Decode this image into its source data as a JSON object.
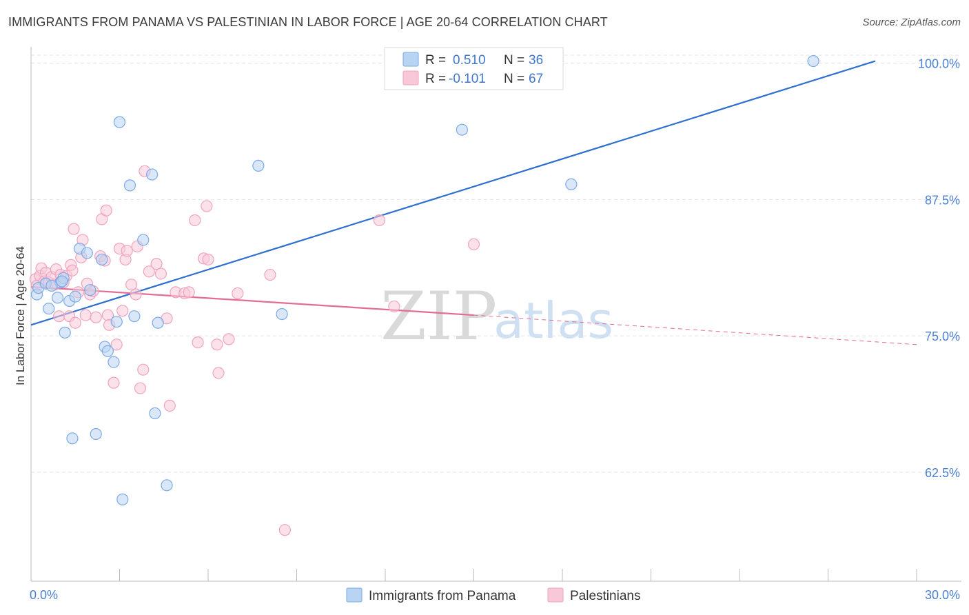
{
  "title": "IMMIGRANTS FROM PANAMA VS PALESTINIAN IN LABOR FORCE | AGE 20-64 CORRELATION CHART",
  "source": "Source: ZipAtlas.com",
  "watermark": {
    "zip": "ZIP",
    "atlas": "atlas"
  },
  "chart_data": {
    "type": "scatter",
    "title": "IMMIGRANTS FROM PANAMA VS PALESTINIAN IN LABOR FORCE | AGE 20-64 CORRELATION CHART",
    "xlabel": "",
    "ylabel": "In Labor Force | Age 20-64",
    "xlim": [
      0,
      30
    ],
    "ylim": [
      52.5,
      101.5
    ],
    "x_tick_labels": [
      "0.0%",
      "30.0%"
    ],
    "y_ticks": [
      62.5,
      75.0,
      87.5,
      100.0
    ],
    "y_tick_labels": [
      "62.5%",
      "75.0%",
      "87.5%",
      "100.0%"
    ],
    "grid": "horizontal dashed",
    "legend": [
      {
        "r_label": "R =",
        "r_value": "0.510",
        "n_label": "N =",
        "n_value": "36"
      },
      {
        "r_label": "R =",
        "r_value": "-0.101",
        "n_label": "N =",
        "n_value": "67"
      }
    ],
    "series": [
      {
        "name": "Immigrants from Panama",
        "color": "#7aaae8",
        "fill": "#b9d3f3",
        "line_color": "#2f6fd0",
        "trend": {
          "x0": 0.0,
          "y0": 76.0,
          "x1": 28.6,
          "y1": 100.2
        },
        "points": [
          [
            0.2,
            78.8
          ],
          [
            0.25,
            79.4
          ],
          [
            0.5,
            79.8
          ],
          [
            0.6,
            77.5
          ],
          [
            0.9,
            78.5
          ],
          [
            1.0,
            79.9
          ],
          [
            1.1,
            80.3
          ],
          [
            1.15,
            75.3
          ],
          [
            1.3,
            78.2
          ],
          [
            1.5,
            78.6
          ],
          [
            1.65,
            83.0
          ],
          [
            1.9,
            82.6
          ],
          [
            2.0,
            79.2
          ],
          [
            2.4,
            82.0
          ],
          [
            2.5,
            74.0
          ],
          [
            2.6,
            73.6
          ],
          [
            2.8,
            72.6
          ],
          [
            2.9,
            76.3
          ],
          [
            3.0,
            94.6
          ],
          [
            3.35,
            88.8
          ],
          [
            3.5,
            76.8
          ],
          [
            3.8,
            83.8
          ],
          [
            4.1,
            89.8
          ],
          [
            4.2,
            67.9
          ],
          [
            4.3,
            76.2
          ],
          [
            4.6,
            61.3
          ],
          [
            1.4,
            65.6
          ],
          [
            2.2,
            66.0
          ],
          [
            3.1,
            60.0
          ],
          [
            7.7,
            90.6
          ],
          [
            8.5,
            77.0
          ],
          [
            14.6,
            93.9
          ],
          [
            18.3,
            88.9
          ],
          [
            26.5,
            100.2
          ],
          [
            0.7,
            79.6
          ],
          [
            1.05,
            80.0
          ]
        ]
      },
      {
        "name": "Palestinians",
        "color": "#f0a3bd",
        "fill": "#f8c8d8",
        "line_color": "#e46b94",
        "trend": {
          "x0": 0.0,
          "y0": 79.5,
          "x1": 15.0,
          "y1": 76.9
        },
        "trend_dashed": {
          "x0": 15.0,
          "y0": 76.9,
          "x1": 30.0,
          "y1": 74.2
        },
        "points": [
          [
            0.15,
            80.2
          ],
          [
            0.2,
            79.6
          ],
          [
            0.3,
            80.5
          ],
          [
            0.35,
            81.2
          ],
          [
            0.45,
            80.0
          ],
          [
            0.5,
            80.8
          ],
          [
            0.6,
            79.9
          ],
          [
            0.7,
            80.4
          ],
          [
            0.8,
            79.7
          ],
          [
            0.85,
            81.1
          ],
          [
            0.95,
            76.8
          ],
          [
            1.0,
            80.6
          ],
          [
            1.1,
            79.9
          ],
          [
            1.2,
            80.5
          ],
          [
            1.3,
            76.8
          ],
          [
            1.35,
            81.5
          ],
          [
            1.4,
            81.0
          ],
          [
            1.45,
            84.8
          ],
          [
            1.5,
            76.2
          ],
          [
            1.6,
            79.0
          ],
          [
            1.7,
            82.2
          ],
          [
            1.75,
            83.8
          ],
          [
            1.85,
            76.9
          ],
          [
            1.9,
            79.8
          ],
          [
            2.0,
            78.8
          ],
          [
            2.1,
            79.1
          ],
          [
            2.2,
            76.7
          ],
          [
            2.35,
            82.3
          ],
          [
            2.4,
            85.7
          ],
          [
            2.5,
            81.9
          ],
          [
            2.55,
            86.5
          ],
          [
            2.6,
            76.9
          ],
          [
            2.65,
            76.0
          ],
          [
            2.8,
            70.7
          ],
          [
            2.9,
            74.2
          ],
          [
            3.0,
            83.0
          ],
          [
            3.1,
            77.3
          ],
          [
            3.2,
            82.0
          ],
          [
            3.25,
            82.8
          ],
          [
            3.4,
            79.7
          ],
          [
            3.55,
            78.8
          ],
          [
            3.6,
            83.2
          ],
          [
            3.7,
            70.2
          ],
          [
            3.8,
            71.9
          ],
          [
            3.85,
            90.1
          ],
          [
            4.0,
            80.9
          ],
          [
            4.25,
            81.6
          ],
          [
            4.4,
            80.7
          ],
          [
            4.6,
            76.6
          ],
          [
            4.7,
            68.6
          ],
          [
            4.9,
            79.0
          ],
          [
            5.2,
            78.9
          ],
          [
            5.35,
            79.0
          ],
          [
            5.55,
            85.6
          ],
          [
            5.65,
            74.4
          ],
          [
            5.85,
            82.1
          ],
          [
            5.95,
            86.9
          ],
          [
            6.0,
            82.0
          ],
          [
            6.3,
            74.2
          ],
          [
            6.35,
            71.6
          ],
          [
            6.7,
            74.7
          ],
          [
            7.0,
            78.9
          ],
          [
            8.1,
            80.6
          ],
          [
            8.6,
            57.2
          ],
          [
            12.3,
            77.7
          ],
          [
            15.0,
            83.4
          ],
          [
            11.8,
            85.6
          ]
        ]
      }
    ]
  }
}
